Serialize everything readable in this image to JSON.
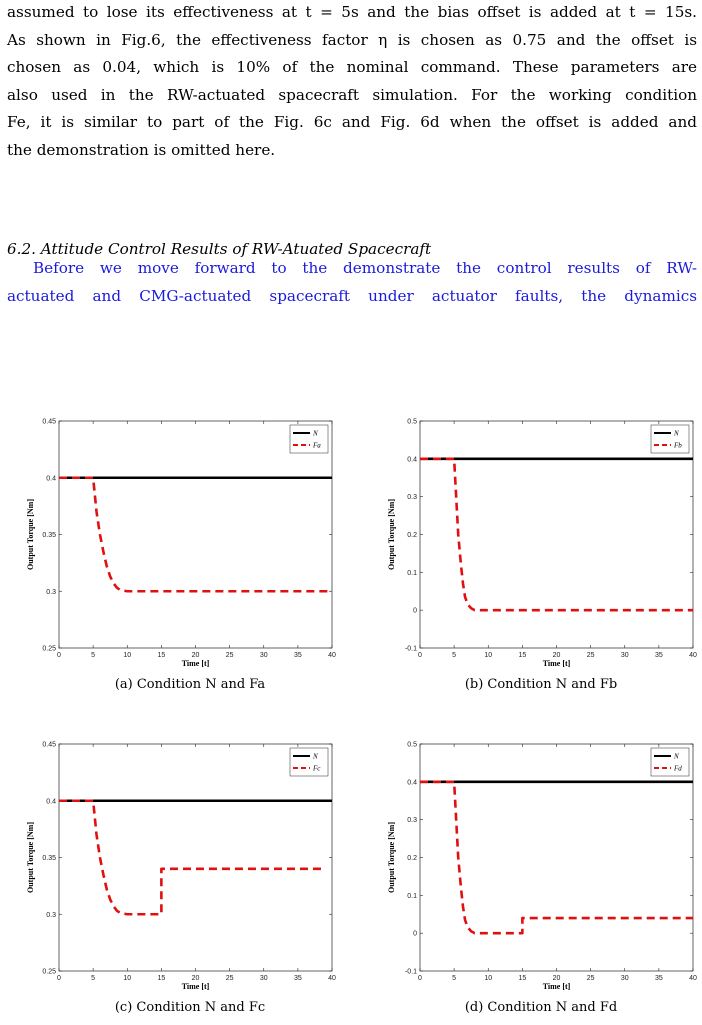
{
  "body_paragraph": [
    "assumed to lose its effectiveness at t = 5s and the bias offset is added at t = 15s.",
    "As shown in Fig.6, the effectiveness factor η is chosen as 0.75 and the offset is",
    "chosen as 0.04, which is 10% of the nominal command. These parameters are",
    "also used in the RW-actuated spacecraft simulation. For the working condition",
    "Fe, it is similar to part of the Fig. 6c and Fig. 6d when the offset is added and",
    "the demonstration is omitted here."
  ],
  "section_heading": "6.2. Attitude Control Results of RW-Atuated Spacecraft",
  "intro_paragraph": [
    "Before we move forward to the demonstrate the control results of RW-",
    "actuated and CMG-actuated spacecraft under actuator faults, the dynamics"
  ],
  "colors": {
    "nominal": "#000000",
    "fault": "#e01010",
    "intro_text": "#1a1adc"
  },
  "chart_data": [
    {
      "type": "line",
      "caption": "(a) Condition N and Fa",
      "xlabel": "Time [t]",
      "ylabel": "Output Torque [Nm]",
      "xlim": [
        0,
        40
      ],
      "ylim": [
        0.25,
        0.45
      ],
      "xticks": [
        0,
        5,
        10,
        15,
        20,
        25,
        30,
        35,
        40
      ],
      "yticks": [
        0.25,
        0.3,
        0.35,
        0.4,
        0.45
      ],
      "legend_position": "top-right",
      "series": [
        {
          "name": "N",
          "style": "solid",
          "x": [
            0,
            40
          ],
          "y": [
            0.4,
            0.4
          ]
        },
        {
          "name": "Fa",
          "style": "dashed",
          "x": [
            0,
            5,
            5.5,
            6,
            6.5,
            7,
            7.5,
            8,
            8.5,
            9,
            10,
            11,
            12,
            40
          ],
          "y": [
            0.4,
            0.4,
            0.37,
            0.35,
            0.335,
            0.322,
            0.313,
            0.307,
            0.303,
            0.301,
            0.3,
            0.3,
            0.3,
            0.3
          ]
        }
      ]
    },
    {
      "type": "line",
      "caption": "(b) Condition N and Fb",
      "xlabel": "Time [t]",
      "ylabel": "Output Torque [Nm]",
      "xlim": [
        0,
        40
      ],
      "ylim": [
        -0.1,
        0.5
      ],
      "xticks": [
        0,
        5,
        10,
        15,
        20,
        25,
        30,
        35,
        40
      ],
      "yticks": [
        -0.1,
        0,
        0.1,
        0.2,
        0.3,
        0.4,
        0.5
      ],
      "legend_position": "top-right",
      "series": [
        {
          "name": "N",
          "style": "solid",
          "x": [
            0,
            40
          ],
          "y": [
            0.4,
            0.4
          ]
        },
        {
          "name": "Fb",
          "style": "dashed",
          "x": [
            0,
            5,
            5.3,
            5.6,
            6,
            6.3,
            6.6,
            7,
            7.5,
            8,
            9,
            40
          ],
          "y": [
            0.4,
            0.4,
            0.3,
            0.2,
            0.12,
            0.07,
            0.035,
            0.015,
            0.005,
            0.0,
            0.0,
            0.0
          ]
        }
      ]
    },
    {
      "type": "line",
      "caption": "(c) Condition N and Fc",
      "xlabel": "Time [t]",
      "ylabel": "Output Torque [Nm]",
      "xlim": [
        0,
        40
      ],
      "ylim": [
        0.25,
        0.45
      ],
      "xticks": [
        0,
        5,
        10,
        15,
        20,
        25,
        30,
        35,
        40
      ],
      "yticks": [
        0.25,
        0.3,
        0.35,
        0.4,
        0.45
      ],
      "legend_position": "top-right",
      "series": [
        {
          "name": "N",
          "style": "solid",
          "x": [
            0,
            40
          ],
          "y": [
            0.4,
            0.4
          ]
        },
        {
          "name": "Fc",
          "style": "dashed",
          "x": [
            0,
            5,
            5.5,
            6,
            6.5,
            7,
            7.5,
            8,
            8.5,
            9,
            10,
            11,
            12,
            15,
            15,
            38.5
          ],
          "y": [
            0.4,
            0.4,
            0.37,
            0.35,
            0.335,
            0.322,
            0.313,
            0.307,
            0.303,
            0.301,
            0.3,
            0.3,
            0.3,
            0.3,
            0.34,
            0.34
          ]
        }
      ]
    },
    {
      "type": "line",
      "caption": "(d) Condition N and Fd",
      "xlabel": "Time [t]",
      "ylabel": "Output Torque [Nm]",
      "xlim": [
        0,
        40
      ],
      "ylim": [
        -0.1,
        0.5
      ],
      "xticks": [
        0,
        5,
        10,
        15,
        20,
        25,
        30,
        35,
        40
      ],
      "yticks": [
        -0.1,
        0,
        0.1,
        0.2,
        0.3,
        0.4,
        0.5
      ],
      "legend_position": "top-right",
      "series": [
        {
          "name": "N",
          "style": "solid",
          "x": [
            0,
            40
          ],
          "y": [
            0.4,
            0.4
          ]
        },
        {
          "name": "Fd",
          "style": "dashed",
          "x": [
            0,
            5,
            5.3,
            5.6,
            6,
            6.3,
            6.6,
            7,
            7.5,
            8,
            9,
            15,
            15,
            40
          ],
          "y": [
            0.4,
            0.4,
            0.3,
            0.2,
            0.12,
            0.07,
            0.035,
            0.015,
            0.005,
            0.0,
            0.0,
            0.0,
            0.04,
            0.04
          ]
        }
      ]
    }
  ]
}
